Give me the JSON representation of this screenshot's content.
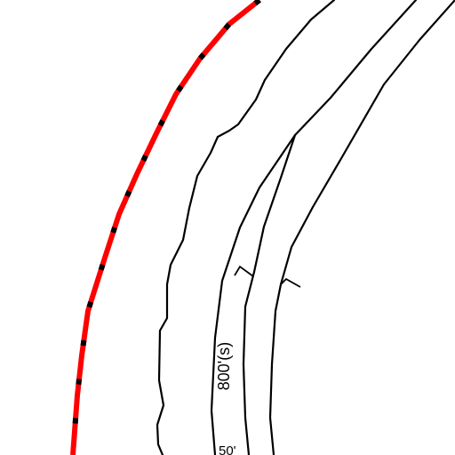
{
  "map": {
    "labels": {
      "distance_main": "800'(s)",
      "distance_partial": "50'"
    },
    "colors": {
      "background": "#ffffff",
      "boundary": "#ff0000",
      "lines": "#000000"
    }
  }
}
